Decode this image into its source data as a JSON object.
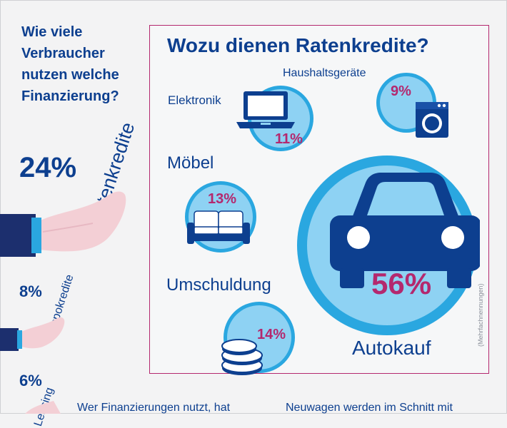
{
  "left_panel": {
    "question": "Wie viele Verbraucher nutzen welche Finanzierung?",
    "items": [
      {
        "percent": "24%",
        "label": "Ratenkredite"
      },
      {
        "percent": "8%",
        "label": "Dispokredite"
      },
      {
        "percent": "6%",
        "label": "Leasing"
      }
    ]
  },
  "main": {
    "title": "Wozu dienen Ratenkredite?",
    "categories": [
      {
        "name": "Haushaltsgeräte",
        "percent": "9%",
        "icon": "washing-machine-icon"
      },
      {
        "name": "Elektronik",
        "percent": "11%",
        "icon": "laptop-icon"
      },
      {
        "name": "Möbel",
        "percent": "13%",
        "icon": "sofa-icon"
      },
      {
        "name": "Umschuldung",
        "percent": "14%",
        "icon": "coins-icon"
      },
      {
        "name": "Autokauf",
        "percent": "56%",
        "icon": "car-icon"
      }
    ],
    "note": "(Mehrfachnennungen)"
  },
  "footer": {
    "left_text": "Wer Finanzierungen nutzt, hat",
    "right_text": "Neuwagen werden im Schnitt mit"
  },
  "colors": {
    "dark_blue": "#0d3f8f",
    "mid_blue": "#2aa7e0",
    "light_blue": "#8ed2f3",
    "magenta": "#b4286e",
    "hand_pink": "#f3cfd5",
    "sleeve_navy": "#1c2f6e"
  }
}
